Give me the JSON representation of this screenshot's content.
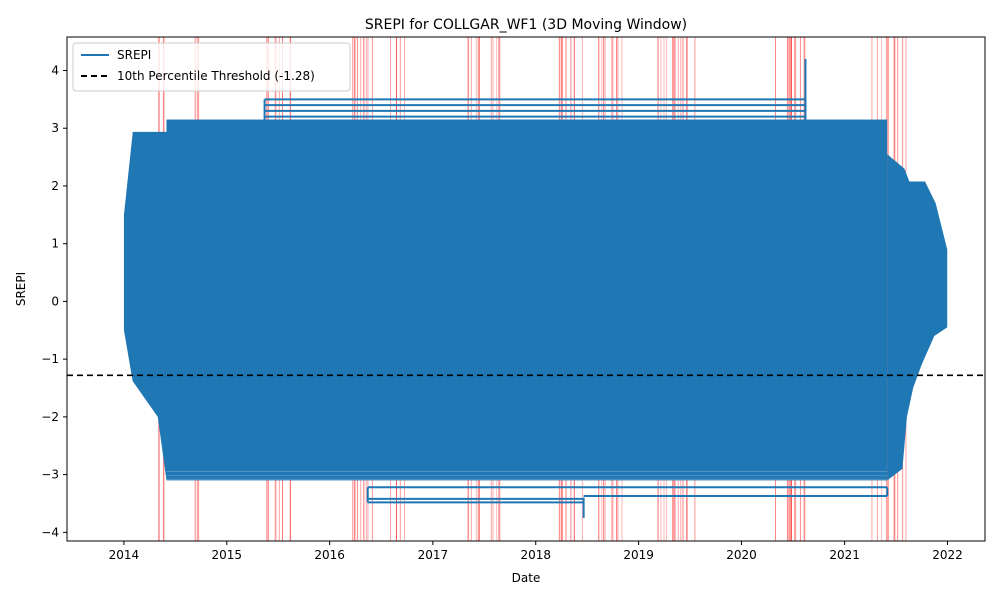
{
  "chart_data": {
    "type": "line",
    "title": "SREPI for COLLGAR_WF1 (3D Moving Window)",
    "xlabel": "Date",
    "ylabel": "SREPI",
    "xlim": [
      "2013-06-13",
      "2022-05-14"
    ],
    "ylim": [
      -4.15,
      4.58
    ],
    "x_ticks": [
      "2014",
      "2015",
      "2016",
      "2017",
      "2018",
      "2019",
      "2020",
      "2021",
      "2022"
    ],
    "y_ticks": [
      -4,
      -3,
      -2,
      -1,
      0,
      1,
      2,
      3,
      4
    ],
    "grid": false,
    "legend_position": "top-left",
    "series": [
      {
        "name": "SREPI",
        "color": "#1f77b4",
        "date_range": [
          "2014-01-01",
          "2021-12-31"
        ],
        "value_range": [
          -3.75,
          4.2
        ],
        "dense_band": [
          -3.1,
          3.15
        ],
        "peak": {
          "date": "2020-08-15",
          "value": 4.2
        },
        "trough": {
          "date": "2018-06-20",
          "value": -3.75
        },
        "persistent_levels": [
          {
            "from": "2015-05-15",
            "to": "2020-08-15",
            "value": 3.5
          },
          {
            "from": "2015-05-15",
            "to": "2020-08-15",
            "value": 3.4
          },
          {
            "from": "2015-05-15",
            "to": "2020-08-15",
            "value": 3.3
          },
          {
            "from": "2015-05-15",
            "to": "2020-08-15",
            "value": 3.2
          },
          {
            "from": "2016-05-15",
            "to": "2018-06-20",
            "value": -3.42
          },
          {
            "from": "2016-05-15",
            "to": "2018-06-20",
            "value": -3.48
          },
          {
            "from": "2018-06-20",
            "to": "2021-06-01",
            "value": -3.37
          },
          {
            "from": "2016-05-15",
            "to": "2021-06-01",
            "value": -3.22
          },
          {
            "from": "2014-02-01",
            "to": "2014-06-01",
            "value": 2.92
          },
          {
            "from": "2014-06-01",
            "to": "2015-05-15",
            "value": 2.98
          },
          {
            "from": "2020-08-15",
            "to": "2021-06-01",
            "value": 2.97
          },
          {
            "from": "2021-06-01",
            "to": "2021-10-15",
            "value": 2.06
          }
        ]
      },
      {
        "name": "10th Percentile Threshold (-1.28)",
        "color": "#000000",
        "style": "dashed",
        "value": -1.28
      }
    ],
    "drought_periods_color": "#ff0000",
    "drought_periods": [
      [
        "2014-05-01",
        "2014-06-15"
      ],
      [
        "2014-09-01",
        "2014-10-05"
      ],
      [
        "2015-05-10",
        "2015-08-20"
      ],
      [
        "2016-03-15",
        "2016-06-25"
      ],
      [
        "2016-08-01",
        "2016-09-25"
      ],
      [
        "2017-04-20",
        "2017-06-20"
      ],
      [
        "2017-07-15",
        "2017-09-10"
      ],
      [
        "2018-03-25",
        "2018-06-25"
      ],
      [
        "2018-08-05",
        "2018-11-20"
      ],
      [
        "2019-03-01",
        "2019-04-20"
      ],
      [
        "2019-05-01",
        "2019-08-20"
      ],
      [
        "2020-04-15",
        "2020-08-25"
      ],
      [
        "2021-04-01",
        "2021-08-10"
      ]
    ]
  }
}
